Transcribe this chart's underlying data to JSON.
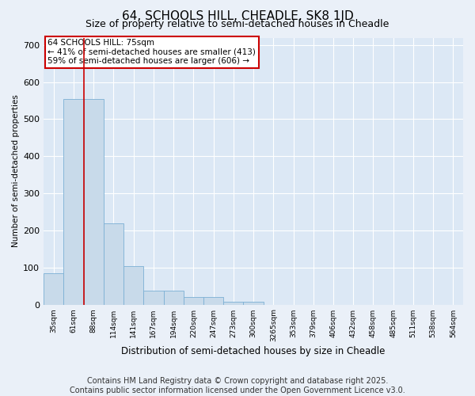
{
  "title": "64, SCHOOLS HILL, CHEADLE, SK8 1JD",
  "subtitle": "Size of property relative to semi-detached houses in Cheadle",
  "xlabel": "Distribution of semi-detached houses by size in Cheadle",
  "ylabel": "Number of semi-detached properties",
  "categories": [
    "35sqm",
    "61sqm",
    "88sqm",
    "114sqm",
    "141sqm",
    "167sqm",
    "194sqm",
    "220sqm",
    "247sqm",
    "273sqm",
    "300sqm",
    "3265sqm",
    "353sqm",
    "379sqm",
    "406sqm",
    "432sqm",
    "458sqm",
    "485sqm",
    "511sqm",
    "538sqm",
    "564sqm"
  ],
  "values": [
    85,
    555,
    555,
    220,
    103,
    38,
    38,
    20,
    20,
    8,
    8,
    0,
    0,
    0,
    0,
    0,
    0,
    0,
    0,
    0,
    0
  ],
  "bar_color": "#c8daea",
  "bar_edge_color": "#7bafd4",
  "property_line_x": 1.5,
  "property_line_color": "#cc0000",
  "annotation_text": "64 SCHOOLS HILL: 75sqm\n← 41% of semi-detached houses are smaller (413)\n59% of semi-detached houses are larger (606) →",
  "annotation_box_color": "#cc0000",
  "ylim": [
    0,
    720
  ],
  "yticks": [
    0,
    100,
    200,
    300,
    400,
    500,
    600,
    700
  ],
  "footer": "Contains HM Land Registry data © Crown copyright and database right 2025.\nContains public sector information licensed under the Open Government Licence v3.0.",
  "background_color": "#eaf0f8",
  "plot_background_color": "#dce8f5",
  "title_fontsize": 11,
  "subtitle_fontsize": 9,
  "footer_fontsize": 7
}
